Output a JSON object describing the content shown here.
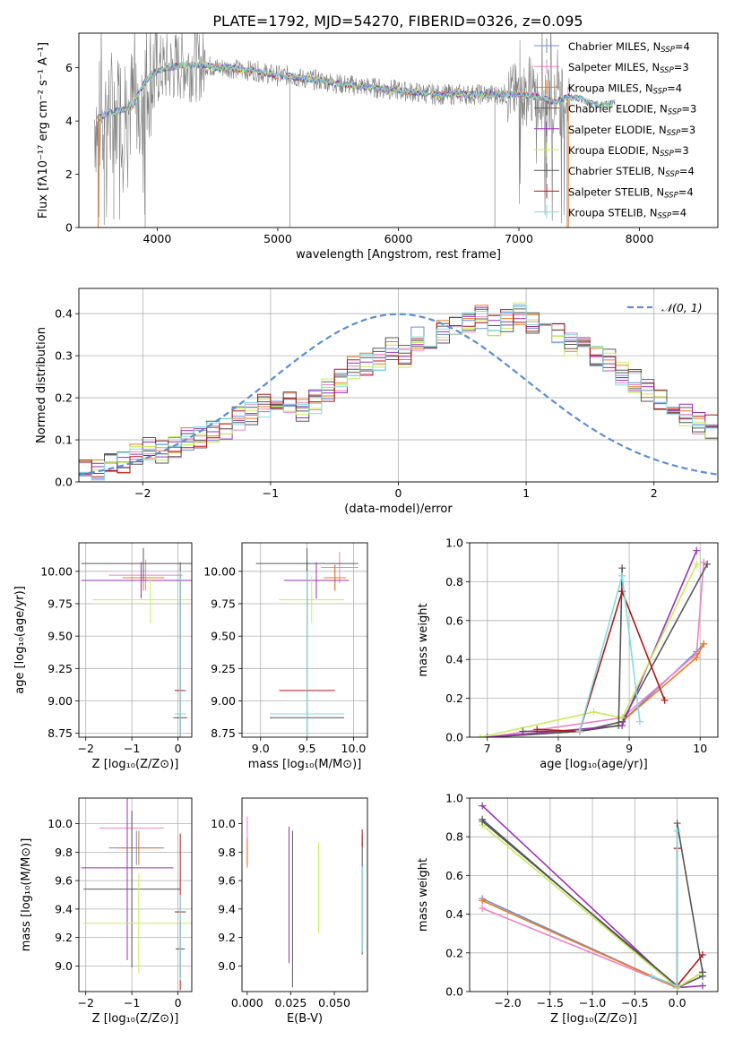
{
  "figure": {
    "title": "PLATE=1792, MJD=54270, FIBERID=0326, z=0.095"
  },
  "colors": {
    "Chabrier MILES": "#6a8fd6",
    "Salpeter MILES": "#ee82c4",
    "Kroupa MILES": "#ee7a22",
    "Chabrier ELODIE": "#5a5a5a",
    "Salpeter ELODIE": "#9a30b8",
    "Kroupa ELODIE": "#c8ec5a",
    "Chabrier STELIB": "#555555",
    "Salpeter STELIB": "#b01818",
    "Kroupa STELIB": "#80dce0",
    "data": "#808080",
    "normal": "#5a8fd6"
  },
  "chart_data": [
    {
      "id": "spectrum",
      "type": "line",
      "xlabel": "wavelength [Angstrom, rest frame]",
      "ylabel": "Flux [fλ10⁻¹⁷ erg cm⁻² s⁻¹ A⁻¹]",
      "xlim": [
        3350,
        8650
      ],
      "ylim": [
        0,
        7.3
      ],
      "xticks": [
        4000,
        5000,
        6000,
        7000,
        8000
      ],
      "yticks": [
        0,
        2,
        4,
        6
      ],
      "grid": false,
      "legend": "top-right",
      "legend_entries": [
        {
          "label": "Chabrier MILES, N",
          "sub": "SSP",
          "suffix": "=4"
        },
        {
          "label": "Salpeter MILES, N",
          "sub": "SSP",
          "suffix": "=3"
        },
        {
          "label": "Kroupa MILES, N",
          "sub": "SSP",
          "suffix": "=4"
        },
        {
          "label": "Chabrier ELODIE, N",
          "sub": "SSP",
          "suffix": "=3"
        },
        {
          "label": "Salpeter ELODIE, N",
          "sub": "SSP",
          "suffix": "=3"
        },
        {
          "label": "Kroupa ELODIE, N",
          "sub": "SSP",
          "suffix": "=3"
        },
        {
          "label": "Chabrier STELIB, N",
          "sub": "SSP",
          "suffix": "=4"
        },
        {
          "label": "Salpeter STELIB, N",
          "sub": "SSP",
          "suffix": "=4"
        },
        {
          "label": "Kroupa STELIB, N",
          "sub": "SSP",
          "suffix": "=4"
        }
      ],
      "continuum": [
        [
          3500,
          4.1
        ],
        [
          3600,
          4.3
        ],
        [
          3700,
          4.4
        ],
        [
          3800,
          4.6
        ],
        [
          3900,
          5.5
        ],
        [
          4000,
          5.9
        ],
        [
          4100,
          6.0
        ],
        [
          4200,
          6.1
        ],
        [
          4300,
          6.1
        ],
        [
          4400,
          6.1
        ],
        [
          4500,
          6.0
        ],
        [
          4600,
          6.0
        ],
        [
          4700,
          5.9
        ],
        [
          4800,
          5.9
        ],
        [
          4900,
          5.8
        ],
        [
          5000,
          5.7
        ],
        [
          5100,
          5.7
        ],
        [
          5200,
          5.6
        ],
        [
          5300,
          5.55
        ],
        [
          5400,
          5.5
        ],
        [
          5500,
          5.4
        ],
        [
          5600,
          5.35
        ],
        [
          5700,
          5.3
        ],
        [
          5800,
          5.25
        ],
        [
          5900,
          5.2
        ],
        [
          6000,
          5.15
        ],
        [
          6100,
          5.1
        ],
        [
          6200,
          5.05
        ],
        [
          6300,
          5.0
        ],
        [
          6400,
          5.0
        ],
        [
          6500,
          5.0
        ],
        [
          6600,
          5.0
        ],
        [
          6700,
          5.0
        ],
        [
          6800,
          5.0
        ],
        [
          6900,
          5.0
        ],
        [
          7000,
          5.0
        ],
        [
          7100,
          4.95
        ],
        [
          7200,
          4.85
        ],
        [
          7300,
          4.7
        ],
        [
          7400,
          4.9
        ],
        [
          7500,
          4.85
        ],
        [
          7600,
          4.65
        ],
        [
          7700,
          4.6
        ],
        [
          7800,
          4.7
        ]
      ]
    },
    {
      "id": "residuals",
      "type": "bar",
      "xlabel": "(data-model)/error",
      "ylabel": "Normed distribution",
      "xlim": [
        -2.5,
        2.5
      ],
      "ylim": [
        0,
        0.46
      ],
      "xticks": [
        -2,
        -1,
        0,
        1,
        2
      ],
      "yticks": [
        0.0,
        0.1,
        0.2,
        0.3,
        0.4
      ],
      "grid": true,
      "legend": "top-right",
      "legend_label": "𝒩(0, 1)",
      "bin_width": 0.1,
      "bins_start": -2.5,
      "histogram": [
        0.03,
        0.03,
        0.04,
        0.05,
        0.06,
        0.08,
        0.07,
        0.08,
        0.1,
        0.11,
        0.12,
        0.13,
        0.15,
        0.16,
        0.18,
        0.17,
        0.19,
        0.17,
        0.19,
        0.22,
        0.24,
        0.27,
        0.28,
        0.29,
        0.32,
        0.3,
        0.34,
        0.34,
        0.36,
        0.37,
        0.38,
        0.39,
        0.37,
        0.38,
        0.4,
        0.38,
        0.37,
        0.36,
        0.33,
        0.32,
        0.3,
        0.29,
        0.26,
        0.24,
        0.22,
        0.19,
        0.18,
        0.16,
        0.14,
        0.13
      ]
    },
    {
      "id": "age-vs-Z",
      "type": "scatter",
      "xlabel": "Z [log₁₀(Z/Z⊙)]",
      "ylabel": "age  [log₁₀(age/yr)]",
      "xlim": [
        -2.15,
        0.3
      ],
      "ylim": [
        8.72,
        10.22
      ],
      "xticks": [
        -2,
        -1,
        0
      ],
      "yticks": [
        8.75,
        9.0,
        9.25,
        9.5,
        9.75,
        10.0
      ],
      "grid": true,
      "points": [
        {
          "c": "Chabrier MILES",
          "x": -0.75,
          "y": 9.95,
          "xe": 0.45,
          "ye": 0.1
        },
        {
          "c": "Salpeter MILES",
          "x": -0.7,
          "y": 9.97,
          "xe": 0.8,
          "ye": 0.12
        },
        {
          "c": "Kroupa MILES",
          "x": -0.75,
          "y": 9.95,
          "xe": 0.45,
          "ye": 0.1
        },
        {
          "c": "Chabrier ELODIE",
          "x": -0.75,
          "y": 10.06,
          "xe": 1.35,
          "ye": 0.12
        },
        {
          "c": "Salpeter ELODIE",
          "x": -0.8,
          "y": 9.93,
          "xe": 1.3,
          "ye": 0.14
        },
        {
          "c": "Kroupa ELODIE",
          "x": -0.6,
          "y": 9.78,
          "xe": 1.25,
          "ye": 0.18
        },
        {
          "c": "Chabrier STELIB",
          "x": 0.05,
          "y": 8.87,
          "xe": 0.15,
          "ye": 1.2
        },
        {
          "c": "Salpeter STELIB",
          "x": 0.05,
          "y": 9.08,
          "xe": 0.12,
          "ye": 0.9
        },
        {
          "c": "Kroupa STELIB",
          "x": 0.05,
          "y": 8.9,
          "xe": 0.12,
          "ye": 1.1
        }
      ]
    },
    {
      "id": "age-vs-mass",
      "type": "scatter",
      "xlabel": "mass [log₁₀(M/M⊙)]",
      "ylabel": "",
      "xlim": [
        8.8,
        10.15
      ],
      "ylim": [
        8.72,
        10.22
      ],
      "xticks": [
        9.0,
        9.5,
        10.0
      ],
      "yticks": [
        8.75,
        9.0,
        9.25,
        9.5,
        9.75,
        10.0
      ],
      "grid": true,
      "points": [
        {
          "c": "Chabrier MILES",
          "x": 9.8,
          "y": 9.95,
          "xe": 0.12,
          "ye": 0.1
        },
        {
          "c": "Salpeter MILES",
          "x": 9.85,
          "y": 10.03,
          "xe": 0.2,
          "ye": 0.12
        },
        {
          "c": "Kroupa MILES",
          "x": 9.8,
          "y": 9.95,
          "xe": 0.12,
          "ye": 0.1
        },
        {
          "c": "Chabrier ELODIE",
          "x": 9.5,
          "y": 10.06,
          "xe": 0.55,
          "ye": 0.12
        },
        {
          "c": "Salpeter ELODIE",
          "x": 9.6,
          "y": 9.93,
          "xe": 0.35,
          "ye": 0.14
        },
        {
          "c": "Kroupa ELODIE",
          "x": 9.55,
          "y": 9.78,
          "xe": 0.35,
          "ye": 0.18
        },
        {
          "c": "Chabrier STELIB",
          "x": 9.5,
          "y": 8.87,
          "xe": 0.4,
          "ye": 1.2
        },
        {
          "c": "Salpeter STELIB",
          "x": 9.5,
          "y": 9.08,
          "xe": 0.3,
          "ye": 0.9
        },
        {
          "c": "Kroupa STELIB",
          "x": 9.5,
          "y": 8.9,
          "xe": 0.4,
          "ye": 1.1
        }
      ]
    },
    {
      "id": "mass-weight-vs-age",
      "type": "line",
      "xlabel": "age  [log₁₀(age/yr)]",
      "ylabel": "mass weight",
      "xlim": [
        6.75,
        10.25
      ],
      "ylim": [
        0,
        1.0
      ],
      "xticks": [
        7,
        8,
        9,
        10
      ],
      "yticks": [
        0.0,
        0.2,
        0.4,
        0.6,
        0.8,
        1.0
      ],
      "grid": true,
      "series": [
        {
          "c": "Chabrier MILES",
          "x": [
            7.0,
            8.3,
            8.9,
            9.95,
            10.05
          ],
          "y": [
            0.0,
            0.03,
            0.08,
            0.44,
            0.48
          ]
        },
        {
          "c": "Salpeter MILES",
          "x": [
            7.0,
            8.9,
            9.95,
            10.05
          ],
          "y": [
            0.0,
            0.1,
            0.43,
            0.9
          ]
        },
        {
          "c": "Kroupa MILES",
          "x": [
            7.0,
            8.3,
            8.9,
            9.95,
            10.05
          ],
          "y": [
            0.0,
            0.03,
            0.08,
            0.41,
            0.48
          ]
        },
        {
          "c": "Chabrier ELODIE",
          "x": [
            7.0,
            8.3,
            8.9,
            10.1
          ],
          "y": [
            0.0,
            0.03,
            0.08,
            0.89
          ]
        },
        {
          "c": "Salpeter ELODIE",
          "x": [
            7.0,
            8.9,
            9.95
          ],
          "y": [
            0.0,
            0.06,
            0.96
          ]
        },
        {
          "c": "Kroupa ELODIE",
          "x": [
            6.9,
            8.5,
            8.9,
            9.95
          ],
          "y": [
            0.0,
            0.13,
            0.1,
            0.89
          ]
        },
        {
          "c": "Chabrier STELIB",
          "x": [
            7.5,
            8.3,
            8.85,
            8.9
          ],
          "y": [
            0.03,
            0.03,
            0.06,
            0.87
          ]
        },
        {
          "c": "Salpeter STELIB",
          "x": [
            7.7,
            8.3,
            8.9,
            9.5
          ],
          "y": [
            0.04,
            0.03,
            0.75,
            0.19
          ]
        },
        {
          "c": "Kroupa STELIB",
          "x": [
            8.3,
            8.9,
            9.15
          ],
          "y": [
            0.03,
            0.83,
            0.08
          ]
        }
      ]
    },
    {
      "id": "mass-vs-Z",
      "type": "scatter",
      "xlabel": "Z [log₁₀(Z/Z⊙)]",
      "ylabel": "mass [log₁₀(M/M⊙)]",
      "xlim": [
        -2.15,
        0.3
      ],
      "ylim": [
        8.82,
        10.18
      ],
      "xticks": [
        -2,
        -1,
        0
      ],
      "yticks": [
        9.0,
        9.2,
        9.4,
        9.6,
        9.8,
        10.0
      ],
      "grid": true,
      "points": [
        {
          "c": "Chabrier MILES",
          "x": -0.9,
          "y": 9.83,
          "xe": 0.6,
          "ye": 0.12
        },
        {
          "c": "Salpeter MILES",
          "x": -1.0,
          "y": 9.97,
          "xe": 0.7,
          "ye": 0.12
        },
        {
          "c": "Kroupa MILES",
          "x": -0.85,
          "y": 9.83,
          "xe": 0.5,
          "ye": 0.12
        },
        {
          "c": "Chabrier ELODIE",
          "x": -1.0,
          "y": 9.54,
          "xe": 1.05,
          "ye": 0.55
        },
        {
          "c": "Salpeter ELODIE",
          "x": -1.1,
          "y": 9.69,
          "xe": 1.0,
          "ye": 0.65
        },
        {
          "c": "Kroupa ELODIE",
          "x": -0.85,
          "y": 9.3,
          "xe": 1.2,
          "ye": 0.35
        },
        {
          "c": "Chabrier STELIB",
          "x": 0.05,
          "y": 9.12,
          "xe": 0.1,
          "ye": 0.2
        },
        {
          "c": "Salpeter STELIB",
          "x": 0.05,
          "y": 9.38,
          "xe": 0.12,
          "ye": 0.55
        },
        {
          "c": "Kroupa STELIB",
          "x": 0.05,
          "y": 9.2,
          "xe": 0.1,
          "ye": 0.3
        }
      ]
    },
    {
      "id": "mass-vs-EBV",
      "type": "scatter",
      "xlabel": "E(B-V)",
      "ylabel": "",
      "xlim": [
        -0.003,
        0.069
      ],
      "ylim": [
        8.82,
        10.18
      ],
      "xticks": [
        0.0,
        0.025,
        0.05
      ],
      "xtick_labels": [
        "0.000",
        "0.025",
        "0.050"
      ],
      "yticks": [
        9.0,
        9.2,
        9.4,
        9.6,
        9.8,
        10.0
      ],
      "grid": false,
      "points": [
        {
          "c": "Salpeter MILES",
          "x": 0.0,
          "y": 9.87,
          "xe": 0,
          "ye": 0.18
        },
        {
          "c": "Kroupa MILES",
          "x": 0.0,
          "y": 9.8,
          "xe": 0,
          "ye": 0.1
        },
        {
          "c": "Salpeter ELODIE",
          "x": 0.024,
          "y": 9.5,
          "xe": 0,
          "ye": 0.48
        },
        {
          "c": "Chabrier ELODIE",
          "x": 0.026,
          "y": 9.4,
          "xe": 0,
          "ye": 0.55
        },
        {
          "c": "Kroupa ELODIE",
          "x": 0.041,
          "y": 9.55,
          "xe": 0,
          "ye": 0.32
        },
        {
          "c": "Chabrier STELIB",
          "x": 0.066,
          "y": 9.5,
          "xe": 0,
          "ye": 0.42
        },
        {
          "c": "Salpeter STELIB",
          "x": 0.066,
          "y": 9.9,
          "xe": 0,
          "ye": 0.06
        },
        {
          "c": "Kroupa STELIB",
          "x": 0.066,
          "y": 9.4,
          "xe": 0,
          "ye": 0.3
        }
      ]
    },
    {
      "id": "mass-weight-vs-Z",
      "type": "line",
      "xlabel": "Z [log₁₀(Z/Z⊙)]",
      "ylabel": "mass weight",
      "xlim": [
        -2.45,
        0.48
      ],
      "ylim": [
        0,
        1.0
      ],
      "xticks": [
        -2.0,
        -1.5,
        -1.0,
        -0.5,
        0.0
      ],
      "yticks": [
        0.0,
        0.2,
        0.4,
        0.6,
        0.8,
        1.0
      ],
      "grid": true,
      "series": [
        {
          "c": "Chabrier MILES",
          "x": [
            -2.3,
            0.0,
            0.3
          ],
          "y": [
            0.48,
            0.02,
            0.08
          ]
        },
        {
          "c": "Salpeter MILES",
          "x": [
            -2.3,
            0.0,
            0.3
          ],
          "y": [
            0.43,
            0.02,
            0.1
          ]
        },
        {
          "c": "Kroupa MILES",
          "x": [
            -2.3,
            0.0,
            0.3
          ],
          "y": [
            0.47,
            0.02,
            0.1
          ]
        },
        {
          "c": "Chabrier ELODIE",
          "x": [
            -2.3,
            0.0,
            0.3
          ],
          "y": [
            0.89,
            0.02,
            0.08
          ]
        },
        {
          "c": "Salpeter ELODIE",
          "x": [
            -2.3,
            0.0,
            0.3
          ],
          "y": [
            0.96,
            0.02,
            0.03
          ]
        },
        {
          "c": "Kroupa ELODIE",
          "x": [
            -2.3,
            0.0,
            0.3
          ],
          "y": [
            0.86,
            0.02,
            0.1
          ]
        },
        {
          "c": "Chabrier STELIB",
          "x": [
            -2.3,
            0.0,
            0.0,
            0.3
          ],
          "y": [
            0.88,
            0.03,
            0.87,
            0.1
          ]
        },
        {
          "c": "Salpeter STELIB",
          "x": [
            0.0,
            0.0,
            0.3
          ],
          "y": [
            0.74,
            0.03,
            0.19
          ]
        },
        {
          "c": "Kroupa STELIB",
          "x": [
            -0.3,
            0.0,
            0.0
          ],
          "y": [
            0.08,
            0.03,
            0.83
          ]
        }
      ]
    }
  ]
}
